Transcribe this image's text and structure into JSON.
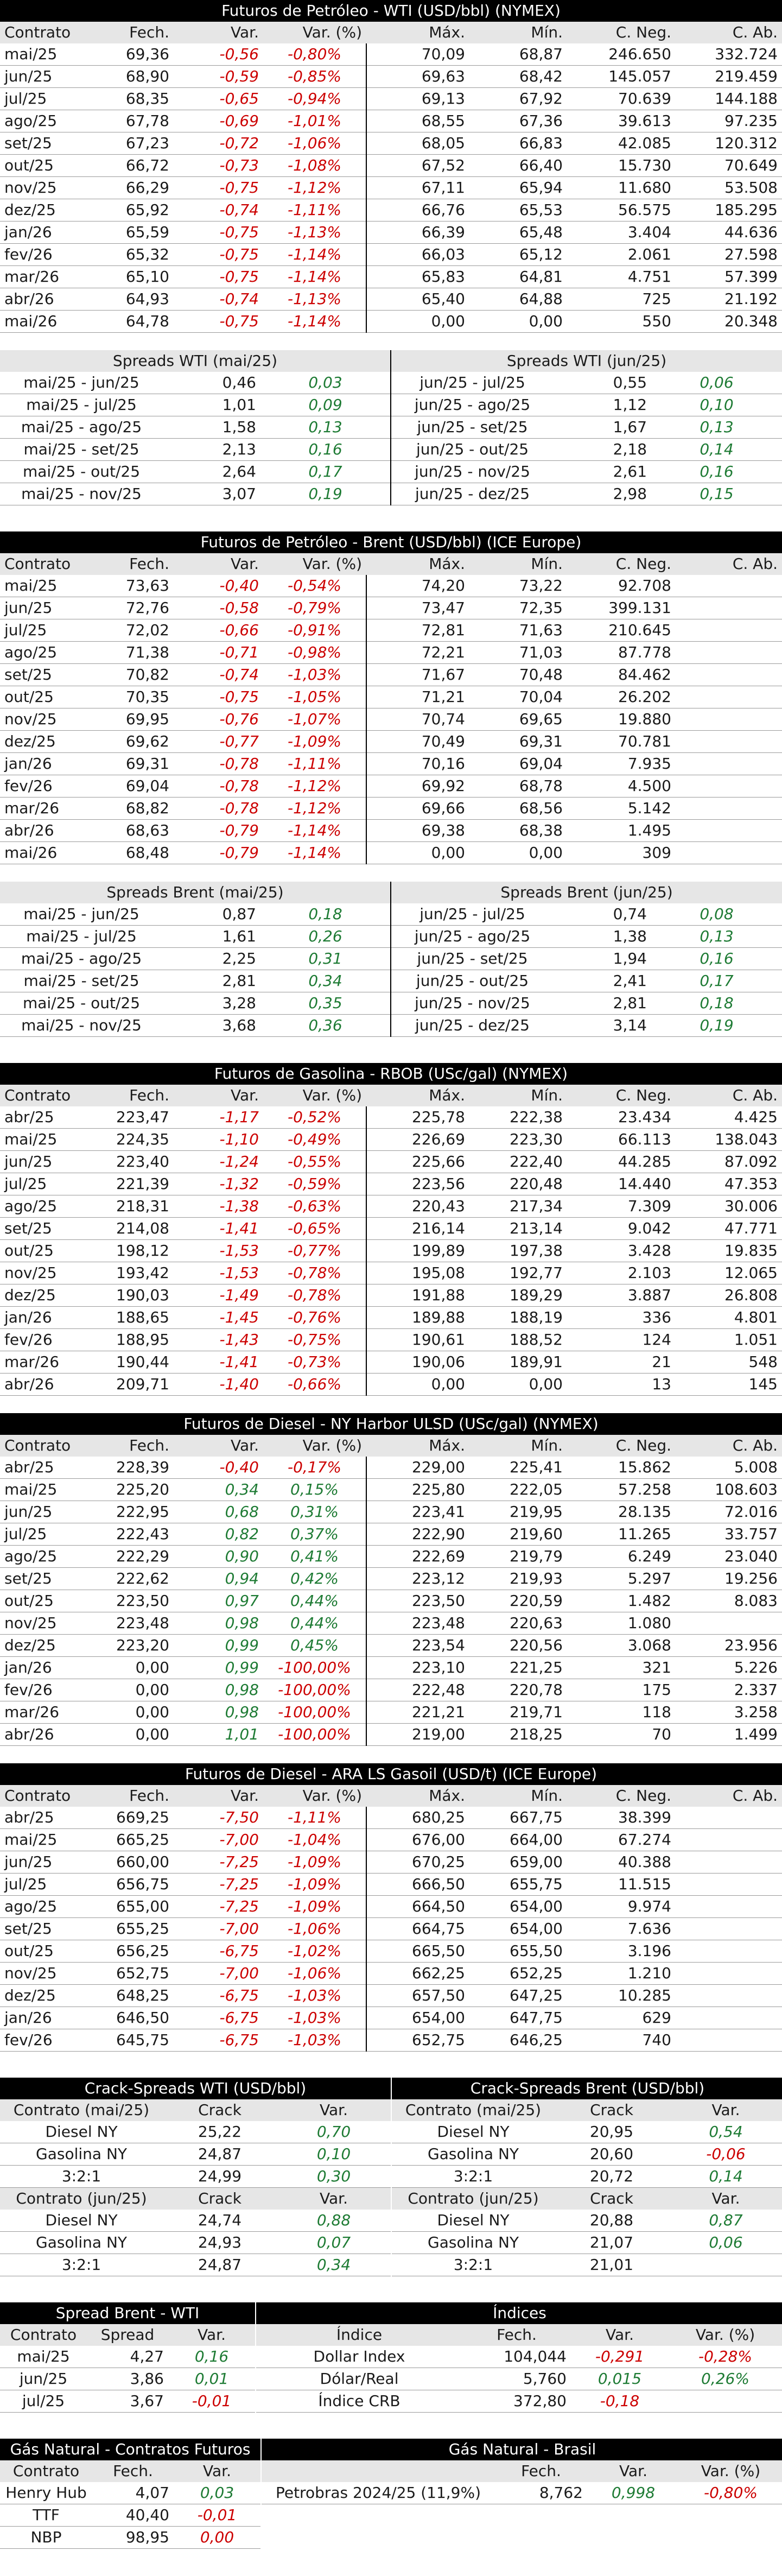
{
  "colors": {
    "negative": "#cc0000",
    "positive": "#1e7b34",
    "header_bg": "#000000",
    "colhdr_bg": "#e6e6e6"
  },
  "wti": {
    "title": "Futuros de Petróleo - WTI (USD/bbl) (NYMEX)",
    "columns": [
      "Contrato",
      "Fech.",
      "Var.",
      "Var. (%)",
      "Máx.",
      "Mín.",
      "C. Neg.",
      "C. Ab."
    ],
    "rows": [
      [
        "mai/25",
        "69,36",
        "-0,56",
        "-0,80%",
        "70,09",
        "68,87",
        "246.650",
        "332.724"
      ],
      [
        "jun/25",
        "68,90",
        "-0,59",
        "-0,85%",
        "69,63",
        "68,42",
        "145.057",
        "219.459"
      ],
      [
        "jul/25",
        "68,35",
        "-0,65",
        "-0,94%",
        "69,13",
        "67,92",
        "70.639",
        "144.188"
      ],
      [
        "ago/25",
        "67,78",
        "-0,69",
        "-1,01%",
        "68,55",
        "67,36",
        "39.613",
        "97.235"
      ],
      [
        "set/25",
        "67,23",
        "-0,72",
        "-1,06%",
        "68,05",
        "66,83",
        "42.085",
        "120.312"
      ],
      [
        "out/25",
        "66,72",
        "-0,73",
        "-1,08%",
        "67,52",
        "66,40",
        "15.730",
        "70.649"
      ],
      [
        "nov/25",
        "66,29",
        "-0,75",
        "-1,12%",
        "67,11",
        "65,94",
        "11.680",
        "53.508"
      ],
      [
        "dez/25",
        "65,92",
        "-0,74",
        "-1,11%",
        "66,76",
        "65,53",
        "56.575",
        "185.295"
      ],
      [
        "jan/26",
        "65,59",
        "-0,75",
        "-1,13%",
        "66,39",
        "65,48",
        "3.404",
        "44.636"
      ],
      [
        "fev/26",
        "65,32",
        "-0,75",
        "-1,14%",
        "66,03",
        "65,12",
        "2.061",
        "27.598"
      ],
      [
        "mar/26",
        "65,10",
        "-0,75",
        "-1,14%",
        "65,83",
        "64,81",
        "4.751",
        "57.399"
      ],
      [
        "abr/26",
        "64,93",
        "-0,74",
        "-1,13%",
        "65,40",
        "64,88",
        "725",
        "21.192"
      ],
      [
        "mai/26",
        "64,78",
        "-0,75",
        "-1,14%",
        "0,00",
        "0,00",
        "550",
        "20.348"
      ]
    ],
    "spreads_left_title": "Spreads WTI (mai/25)",
    "spreads_right_title": "Spreads WTI (jun/25)",
    "spreads": [
      [
        "mai/25 - jun/25",
        "0,46",
        "0,03",
        "jun/25 - jul/25",
        "0,55",
        "0,06"
      ],
      [
        "mai/25 - jul/25",
        "1,01",
        "0,09",
        "jun/25 - ago/25",
        "1,12",
        "0,10"
      ],
      [
        "mai/25 - ago/25",
        "1,58",
        "0,13",
        "jun/25 - set/25",
        "1,67",
        "0,13"
      ],
      [
        "mai/25 - set/25",
        "2,13",
        "0,16",
        "jun/25 - out/25",
        "2,18",
        "0,14"
      ],
      [
        "mai/25 - out/25",
        "2,64",
        "0,17",
        "jun/25 - nov/25",
        "2,61",
        "0,16"
      ],
      [
        "mai/25 - nov/25",
        "3,07",
        "0,19",
        "jun/25 - dez/25",
        "2,98",
        "0,15"
      ]
    ]
  },
  "brent": {
    "title": "Futuros de Petróleo - Brent (USD/bbl) (ICE Europe)",
    "columns": [
      "Contrato",
      "Fech.",
      "Var.",
      "Var. (%)",
      "Máx.",
      "Mín.",
      "C. Neg.",
      "C. Ab."
    ],
    "rows": [
      [
        "mai/25",
        "73,63",
        "-0,40",
        "-0,54%",
        "74,20",
        "73,22",
        "92.708",
        ""
      ],
      [
        "jun/25",
        "72,76",
        "-0,58",
        "-0,79%",
        "73,47",
        "72,35",
        "399.131",
        ""
      ],
      [
        "jul/25",
        "72,02",
        "-0,66",
        "-0,91%",
        "72,81",
        "71,63",
        "210.645",
        ""
      ],
      [
        "ago/25",
        "71,38",
        "-0,71",
        "-0,98%",
        "72,21",
        "71,03",
        "87.778",
        ""
      ],
      [
        "set/25",
        "70,82",
        "-0,74",
        "-1,03%",
        "71,67",
        "70,48",
        "84.462",
        ""
      ],
      [
        "out/25",
        "70,35",
        "-0,75",
        "-1,05%",
        "71,21",
        "70,04",
        "26.202",
        ""
      ],
      [
        "nov/25",
        "69,95",
        "-0,76",
        "-1,07%",
        "70,74",
        "69,65",
        "19.880",
        ""
      ],
      [
        "dez/25",
        "69,62",
        "-0,77",
        "-1,09%",
        "70,49",
        "69,31",
        "70.781",
        ""
      ],
      [
        "jan/26",
        "69,31",
        "-0,78",
        "-1,11%",
        "70,16",
        "69,04",
        "7.935",
        ""
      ],
      [
        "fev/26",
        "69,04",
        "-0,78",
        "-1,12%",
        "69,92",
        "68,78",
        "4.500",
        ""
      ],
      [
        "mar/26",
        "68,82",
        "-0,78",
        "-1,12%",
        "69,66",
        "68,56",
        "5.142",
        ""
      ],
      [
        "abr/26",
        "68,63",
        "-0,79",
        "-1,14%",
        "69,38",
        "68,38",
        "1.495",
        ""
      ],
      [
        "mai/26",
        "68,48",
        "-0,79",
        "-1,14%",
        "0,00",
        "0,00",
        "309",
        ""
      ]
    ],
    "spreads_left_title": "Spreads Brent (mai/25)",
    "spreads_right_title": "Spreads Brent (jun/25)",
    "spreads": [
      [
        "mai/25 - jun/25",
        "0,87",
        "0,18",
        "jun/25 - jul/25",
        "0,74",
        "0,08"
      ],
      [
        "mai/25 - jul/25",
        "1,61",
        "0,26",
        "jun/25 - ago/25",
        "1,38",
        "0,13"
      ],
      [
        "mai/25 - ago/25",
        "2,25",
        "0,31",
        "jun/25 - set/25",
        "1,94",
        "0,16"
      ],
      [
        "mai/25 - set/25",
        "2,81",
        "0,34",
        "jun/25 - out/25",
        "2,41",
        "0,17"
      ],
      [
        "mai/25 - out/25",
        "3,28",
        "0,35",
        "jun/25 - nov/25",
        "2,81",
        "0,18"
      ],
      [
        "mai/25 - nov/25",
        "3,68",
        "0,36",
        "jun/25 - dez/25",
        "3,14",
        "0,19"
      ]
    ]
  },
  "rbob": {
    "title": "Futuros de Gasolina - RBOB (USc/gal) (NYMEX)",
    "columns": [
      "Contrato",
      "Fech.",
      "Var.",
      "Var. (%)",
      "Máx.",
      "Mín.",
      "C. Neg.",
      "C. Ab."
    ],
    "rows": [
      [
        "abr/25",
        "223,47",
        "-1,17",
        "-0,52%",
        "225,78",
        "222,38",
        "23.434",
        "4.425"
      ],
      [
        "mai/25",
        "224,35",
        "-1,10",
        "-0,49%",
        "226,69",
        "223,30",
        "66.113",
        "138.043"
      ],
      [
        "jun/25",
        "223,40",
        "-1,24",
        "-0,55%",
        "225,66",
        "222,40",
        "44.285",
        "87.092"
      ],
      [
        "jul/25",
        "221,39",
        "-1,32",
        "-0,59%",
        "223,56",
        "220,48",
        "14.440",
        "47.353"
      ],
      [
        "ago/25",
        "218,31",
        "-1,38",
        "-0,63%",
        "220,43",
        "217,34",
        "7.309",
        "30.006"
      ],
      [
        "set/25",
        "214,08",
        "-1,41",
        "-0,65%",
        "216,14",
        "213,14",
        "9.042",
        "47.771"
      ],
      [
        "out/25",
        "198,12",
        "-1,53",
        "-0,77%",
        "199,89",
        "197,38",
        "3.428",
        "19.835"
      ],
      [
        "nov/25",
        "193,42",
        "-1,53",
        "-0,78%",
        "195,08",
        "192,77",
        "2.103",
        "12.065"
      ],
      [
        "dez/25",
        "190,03",
        "-1,49",
        "-0,78%",
        "191,88",
        "189,29",
        "3.887",
        "26.808"
      ],
      [
        "jan/26",
        "188,65",
        "-1,45",
        "-0,76%",
        "189,88",
        "188,19",
        "336",
        "4.801"
      ],
      [
        "fev/26",
        "188,95",
        "-1,43",
        "-0,75%",
        "190,61",
        "188,52",
        "124",
        "1.051"
      ],
      [
        "mar/26",
        "190,44",
        "-1,41",
        "-0,73%",
        "190,06",
        "189,91",
        "21",
        "548"
      ],
      [
        "abr/26",
        "209,71",
        "-1,40",
        "-0,66%",
        "0,00",
        "0,00",
        "13",
        "145"
      ]
    ]
  },
  "ulsd": {
    "title": "Futuros de Diesel - NY Harbor ULSD (USc/gal) (NYMEX)",
    "columns": [
      "Contrato",
      "Fech.",
      "Var.",
      "Var. (%)",
      "Máx.",
      "Mín.",
      "C. Neg.",
      "C. Ab."
    ],
    "rows": [
      [
        "abr/25",
        "228,39",
        "-0,40",
        "-0,17%",
        "229,00",
        "225,41",
        "15.862",
        "5.008"
      ],
      [
        "mai/25",
        "225,20",
        "0,34",
        "0,15%",
        "225,80",
        "222,05",
        "57.258",
        "108.603"
      ],
      [
        "jun/25",
        "222,95",
        "0,68",
        "0,31%",
        "223,41",
        "219,95",
        "28.135",
        "72.016"
      ],
      [
        "jul/25",
        "222,43",
        "0,82",
        "0,37%",
        "222,90",
        "219,60",
        "11.265",
        "33.757"
      ],
      [
        "ago/25",
        "222,29",
        "0,90",
        "0,41%",
        "222,69",
        "219,79",
        "6.249",
        "23.040"
      ],
      [
        "set/25",
        "222,62",
        "0,94",
        "0,42%",
        "223,12",
        "219,93",
        "5.297",
        "19.256"
      ],
      [
        "out/25",
        "223,50",
        "0,97",
        "0,44%",
        "223,50",
        "220,59",
        "1.482",
        "8.083"
      ],
      [
        "nov/25",
        "223,48",
        "0,98",
        "0,44%",
        "223,48",
        "220,63",
        "1.080",
        ""
      ],
      [
        "dez/25",
        "223,20",
        "0,99",
        "0,45%",
        "223,54",
        "220,56",
        "3.068",
        "23.956"
      ],
      [
        "jan/26",
        "0,00",
        "0,99",
        "-100,00%",
        "223,10",
        "221,25",
        "321",
        "5.226"
      ],
      [
        "fev/26",
        "0,00",
        "0,98",
        "-100,00%",
        "222,48",
        "220,78",
        "175",
        "2.337"
      ],
      [
        "mar/26",
        "0,00",
        "0,98",
        "-100,00%",
        "221,21",
        "219,71",
        "118",
        "3.258"
      ],
      [
        "abr/26",
        "0,00",
        "1,01",
        "-100,00%",
        "219,00",
        "218,25",
        "70",
        "1.499"
      ]
    ]
  },
  "gasoil": {
    "title": "Futuros de Diesel - ARA LS Gasoil (USD/t) (ICE Europe)",
    "columns": [
      "Contrato",
      "Fech.",
      "Var.",
      "Var. (%)",
      "Máx.",
      "Mín.",
      "C. Neg.",
      "C. Ab."
    ],
    "rows": [
      [
        "abr/25",
        "669,25",
        "-7,50",
        "-1,11%",
        "680,25",
        "667,75",
        "38.399",
        ""
      ],
      [
        "mai/25",
        "665,25",
        "-7,00",
        "-1,04%",
        "676,00",
        "664,00",
        "67.274",
        ""
      ],
      [
        "jun/25",
        "660,00",
        "-7,25",
        "-1,09%",
        "670,25",
        "659,00",
        "40.388",
        ""
      ],
      [
        "jul/25",
        "656,75",
        "-7,25",
        "-1,09%",
        "666,50",
        "655,75",
        "11.515",
        ""
      ],
      [
        "ago/25",
        "655,00",
        "-7,25",
        "-1,09%",
        "664,50",
        "654,00",
        "9.974",
        ""
      ],
      [
        "set/25",
        "655,25",
        "-7,00",
        "-1,06%",
        "664,75",
        "654,00",
        "7.636",
        ""
      ],
      [
        "out/25",
        "656,25",
        "-6,75",
        "-1,02%",
        "665,50",
        "655,50",
        "3.196",
        ""
      ],
      [
        "nov/25",
        "652,75",
        "-7,00",
        "-1,06%",
        "662,25",
        "652,25",
        "1.210",
        ""
      ],
      [
        "dez/25",
        "648,25",
        "-6,75",
        "-1,03%",
        "657,50",
        "647,25",
        "10.285",
        ""
      ],
      [
        "jan/26",
        "646,50",
        "-6,75",
        "-1,03%",
        "654,00",
        "647,75",
        "629",
        ""
      ],
      [
        "fev/26",
        "645,75",
        "-6,75",
        "-1,03%",
        "652,75",
        "646,25",
        "740",
        ""
      ]
    ]
  },
  "crack": {
    "wti_title": "Crack-Spreads WTI (USD/bbl)",
    "brent_title": "Crack-Spreads Brent (USD/bbl)",
    "wti_blocks": [
      {
        "header": [
          "Contrato (mai/25)",
          "Crack",
          "Var."
        ],
        "rows": [
          [
            "Diesel NY",
            "25,22",
            "0,70"
          ],
          [
            "Gasolina NY",
            "24,87",
            "0,10"
          ],
          [
            "3:2:1",
            "24,99",
            "0,30"
          ]
        ]
      },
      {
        "header": [
          "Contrato (jun/25)",
          "Crack",
          "Var."
        ],
        "rows": [
          [
            "Diesel NY",
            "24,74",
            "0,88"
          ],
          [
            "Gasolina NY",
            "24,93",
            "0,07"
          ],
          [
            "3:2:1",
            "24,87",
            "0,34"
          ]
        ]
      }
    ],
    "brent_blocks": [
      {
        "header": [
          "Contrato (mai/25)",
          "Crack",
          "Var."
        ],
        "rows": [
          [
            "Diesel NY",
            "20,95",
            "0,54"
          ],
          [
            "Gasolina NY",
            "20,60",
            "-0,06"
          ],
          [
            "3:2:1",
            "20,72",
            "0,14"
          ]
        ]
      },
      {
        "header": [
          "Contrato (jun/25)",
          "Crack",
          "Var."
        ],
        "rows": [
          [
            "Diesel NY",
            "20,88",
            "0,87"
          ],
          [
            "Gasolina NY",
            "21,07",
            "0,06"
          ],
          [
            "3:2:1",
            "21,01",
            ""
          ]
        ]
      }
    ]
  },
  "spread_bw": {
    "title": "Spread Brent - WTI",
    "columns": [
      "Contrato",
      "Spread",
      "Var."
    ],
    "rows": [
      [
        "mai/25",
        "4,27",
        "0,16"
      ],
      [
        "jun/25",
        "3,86",
        "0,01"
      ],
      [
        "jul/25",
        "3,67",
        "-0,01"
      ]
    ]
  },
  "indices": {
    "title": "Índices",
    "columns": [
      "Índice",
      "Fech.",
      "Var.",
      "Var. (%)"
    ],
    "rows": [
      [
        "Dollar Index",
        "104,044",
        "-0,291",
        "-0,28%"
      ],
      [
        "Dólar/Real",
        "5,760",
        "0,015",
        "0,26%"
      ],
      [
        "Índice CRB",
        "372,80",
        "-0,18",
        ""
      ]
    ]
  },
  "gas_futures": {
    "title": "Gás Natural - Contratos Futuros",
    "columns": [
      "Contrato",
      "Fech.",
      "Var."
    ],
    "rows": [
      [
        "Henry Hub",
        "4,07",
        "0,03"
      ],
      [
        "TTF",
        "40,40",
        "-0,01"
      ],
      [
        "NBP",
        "98,95",
        "0,00"
      ]
    ]
  },
  "gas_brasil": {
    "title": "Gás Natural - Brasil",
    "columns": [
      "",
      "Fech.",
      "Var.",
      "Var. (%)"
    ],
    "rows": [
      [
        "Petrobras 2024/25 (11,9%)",
        "8,762",
        "0,998",
        "-0,80%"
      ]
    ]
  }
}
